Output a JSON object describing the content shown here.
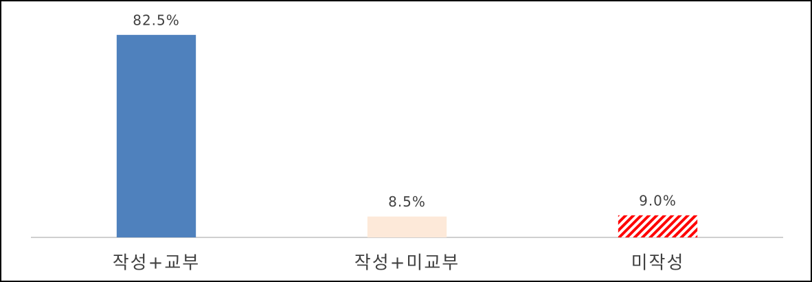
{
  "chart_data": {
    "type": "bar",
    "categories": [
      "작성+교부",
      "작성+미교부",
      "미작성"
    ],
    "values": [
      82.5,
      8.5,
      9.0
    ],
    "value_labels": [
      "82.5%",
      "8.5%",
      "9.0%"
    ],
    "colors": [
      "#4f81bd",
      "#fde9d9",
      "#ff0000"
    ],
    "hatch": [
      false,
      false,
      true
    ],
    "ylim": [
      0,
      90
    ]
  }
}
